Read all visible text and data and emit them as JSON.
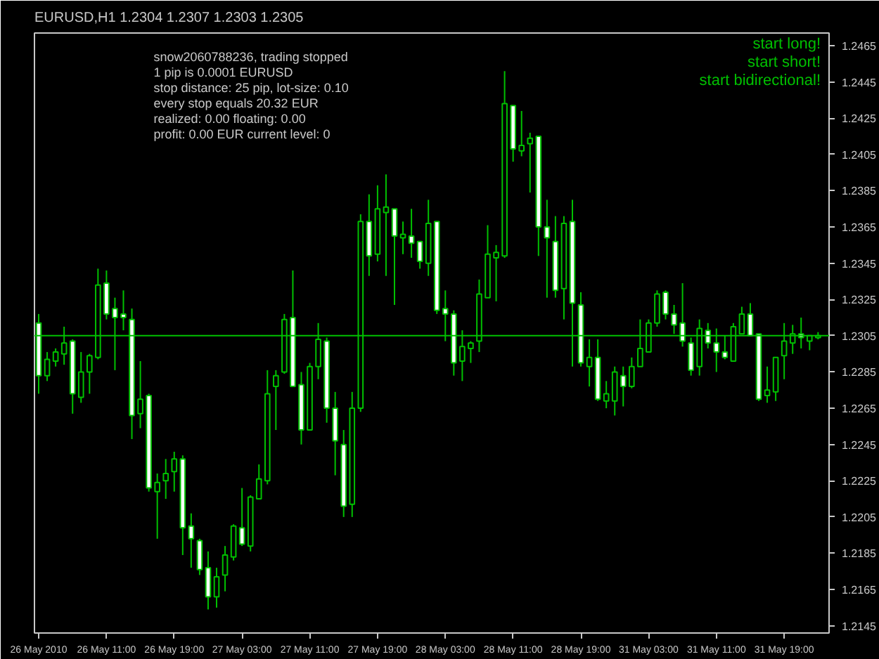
{
  "chart_data": {
    "type": "candlestick",
    "title": "EURUSD,H1  1.2304 1.2307 1.2303 1.2305",
    "categories": [
      "26 May 2010",
      null,
      null,
      null,
      null,
      null,
      null,
      null,
      "26 May 11:00",
      null,
      null,
      null,
      null,
      null,
      null,
      null,
      "26 May 19:00",
      null,
      null,
      null,
      null,
      null,
      null,
      null,
      "27 May 03:00",
      null,
      null,
      null,
      null,
      null,
      null,
      null,
      "27 May 11:00",
      null,
      null,
      null,
      null,
      null,
      null,
      null,
      "27 May 19:00",
      null,
      null,
      null,
      null,
      null,
      null,
      null,
      "28 May 03:00",
      null,
      null,
      null,
      null,
      null,
      null,
      null,
      "28 May 11:00",
      null,
      null,
      null,
      null,
      null,
      null,
      null,
      "28 May 19:00",
      null,
      null,
      null,
      null,
      null,
      null,
      null,
      "31 May 03:00",
      null,
      null,
      null,
      null,
      null,
      null,
      null,
      "31 May 11:00",
      null,
      null,
      null,
      null,
      null,
      null,
      null,
      "31 May 19:00",
      null,
      null,
      null,
      null
    ],
    "series": [
      {
        "color": "#00c000",
        "ohlc": [
          [
            1.2312,
            1.2317,
            1.2273,
            1.2283
          ],
          [
            1.2283,
            1.2296,
            1.228,
            1.2292
          ],
          [
            1.2291,
            1.2298,
            1.2288,
            1.2296
          ],
          [
            1.2295,
            1.231,
            1.2289,
            1.2301
          ],
          [
            1.2302,
            1.2303,
            1.2262,
            1.2273
          ],
          [
            1.2271,
            1.2296,
            1.2268,
            1.2285
          ],
          [
            1.2285,
            1.2295,
            1.2273,
            1.2294
          ],
          [
            1.2293,
            1.2342,
            1.2292,
            1.2333
          ],
          [
            1.2334,
            1.2341,
            1.2314,
            1.2317
          ],
          [
            1.232,
            1.2326,
            1.2286,
            1.2315
          ],
          [
            1.2317,
            1.233,
            1.2308,
            1.2315
          ],
          [
            1.2314,
            1.232,
            1.2248,
            1.2261
          ],
          [
            1.2262,
            1.2291,
            1.2254,
            1.227
          ],
          [
            1.2272,
            1.2273,
            1.2219,
            1.2221
          ],
          [
            1.2219,
            1.2229,
            1.2193,
            1.2224
          ],
          [
            1.2225,
            1.2237,
            1.2215,
            1.2229
          ],
          [
            1.223,
            1.2241,
            1.2219,
            1.2237
          ],
          [
            1.2237,
            1.2239,
            1.2184,
            1.2199
          ],
          [
            1.22,
            1.2207,
            1.2177,
            1.2193
          ],
          [
            1.2192,
            1.2193,
            1.2173,
            1.2176
          ],
          [
            1.2177,
            1.2186,
            1.2154,
            1.2161
          ],
          [
            1.2161,
            1.2177,
            1.2155,
            1.2172
          ],
          [
            1.2173,
            1.2189,
            1.2164,
            1.2184
          ],
          [
            1.2183,
            1.2201,
            1.2181,
            1.22
          ],
          [
            1.2199,
            1.2221,
            1.2189,
            1.219
          ],
          [
            1.2189,
            1.2217,
            1.2186,
            1.2216
          ],
          [
            1.2215,
            1.2234,
            1.2215,
            1.2226
          ],
          [
            1.2225,
            1.2286,
            1.2223,
            1.2273
          ],
          [
            1.2277,
            1.2286,
            1.2253,
            1.2283
          ],
          [
            1.2285,
            1.2317,
            1.2284,
            1.2314
          ],
          [
            1.2315,
            1.2341,
            1.2277,
            1.2277
          ],
          [
            1.2278,
            1.2285,
            1.2245,
            1.2253
          ],
          [
            1.2253,
            1.229,
            1.2253,
            1.2288
          ],
          [
            1.2288,
            1.2312,
            1.2281,
            1.2303
          ],
          [
            1.2302,
            1.2304,
            1.2257,
            1.2265
          ],
          [
            1.2265,
            1.2274,
            1.2228,
            1.2247
          ],
          [
            1.2245,
            1.2253,
            1.2205,
            1.2211
          ],
          [
            1.2212,
            1.2274,
            1.2205,
            1.2265
          ],
          [
            1.2265,
            1.2372,
            1.2263,
            1.2368
          ],
          [
            1.2368,
            1.2383,
            1.2338,
            1.2349
          ],
          [
            1.235,
            1.2388,
            1.2346,
            1.2375
          ],
          [
            1.2373,
            1.2394,
            1.2338,
            1.2376
          ],
          [
            1.2375,
            1.2375,
            1.2322,
            1.236
          ],
          [
            1.2359,
            1.2368,
            1.235,
            1.2361
          ],
          [
            1.236,
            1.2375,
            1.2348,
            1.2356
          ],
          [
            1.2357,
            1.2357,
            1.2342,
            1.2346
          ],
          [
            1.2345,
            1.238,
            1.2338,
            1.2367
          ],
          [
            1.2368,
            1.2368,
            1.2317,
            1.2319
          ],
          [
            1.232,
            1.233,
            1.2302,
            1.2317
          ],
          [
            1.2317,
            1.2319,
            1.2283,
            1.229
          ],
          [
            1.2291,
            1.2308,
            1.228,
            1.2299
          ],
          [
            1.2298,
            1.2302,
            1.229,
            1.2301
          ],
          [
            1.2302,
            1.2336,
            1.2296,
            1.2328
          ],
          [
            1.2326,
            1.2366,
            1.2326,
            1.235
          ],
          [
            1.2348,
            1.2355,
            1.2324,
            1.2351
          ],
          [
            1.2349,
            1.2451,
            1.2348,
            1.2433
          ],
          [
            1.2432,
            1.2432,
            1.2401,
            1.2408
          ],
          [
            1.2407,
            1.2429,
            1.2404,
            1.241
          ],
          [
            1.2411,
            1.2417,
            1.2384,
            1.2414
          ],
          [
            1.2415,
            1.2415,
            1.2349,
            1.2365
          ],
          [
            1.2365,
            1.238,
            1.2326,
            1.2359
          ],
          [
            1.2357,
            1.2371,
            1.2326,
            1.233
          ],
          [
            1.2331,
            1.2371,
            1.2314,
            1.2367
          ],
          [
            1.2368,
            1.238,
            1.2288,
            1.2323
          ],
          [
            1.2322,
            1.2329,
            1.2288,
            1.229
          ],
          [
            1.2288,
            1.2303,
            1.2277,
            1.2293
          ],
          [
            1.2293,
            1.2303,
            1.2269,
            1.227
          ],
          [
            1.2269,
            1.228,
            1.2265,
            1.2273
          ],
          [
            1.2269,
            1.2288,
            1.2261,
            1.2285
          ],
          [
            1.2283,
            1.2288,
            1.2266,
            1.2277
          ],
          [
            1.2277,
            1.2293,
            1.2276,
            1.2288
          ],
          [
            1.2288,
            1.2314,
            1.2288,
            1.2298
          ],
          [
            1.2296,
            1.2314,
            1.2296,
            1.2312
          ],
          [
            1.2312,
            1.233,
            1.231,
            1.2328
          ],
          [
            1.2329,
            1.233,
            1.2314,
            1.2317
          ],
          [
            1.2317,
            1.2322,
            1.2306,
            1.2311
          ],
          [
            1.2312,
            1.2334,
            1.2299,
            1.2302
          ],
          [
            1.2301,
            1.2304,
            1.2283,
            1.2286
          ],
          [
            1.2288,
            1.2314,
            1.2283,
            1.2309
          ],
          [
            1.2308,
            1.2312,
            1.2298,
            1.2301
          ],
          [
            1.2301,
            1.2309,
            1.2285,
            1.2296
          ],
          [
            1.2296,
            1.2305,
            1.2292,
            1.2293
          ],
          [
            1.2291,
            1.2312,
            1.2291,
            1.231
          ],
          [
            1.2306,
            1.2321,
            1.2306,
            1.2317
          ],
          [
            1.2317,
            1.2323,
            1.2305,
            1.2305
          ],
          [
            1.2306,
            1.2306,
            1.2269,
            1.227
          ],
          [
            1.2272,
            1.2288,
            1.2268,
            1.2275
          ],
          [
            1.2274,
            1.2293,
            1.2269,
            1.2293
          ],
          [
            1.2294,
            1.2312,
            1.2281,
            1.2302
          ],
          [
            1.2301,
            1.2311,
            1.2295,
            1.2306
          ],
          [
            1.2306,
            1.2315,
            1.2298,
            1.2304
          ],
          [
            1.2302,
            1.2305,
            1.2297,
            1.2305
          ],
          [
            1.2304,
            1.2307,
            1.2303,
            1.2305
          ]
        ]
      }
    ],
    "ylim": [
      1.2141,
      1.2472
    ],
    "yticks": [
      1.2465,
      1.2445,
      1.2425,
      1.2405,
      1.2385,
      1.2365,
      1.2345,
      1.2325,
      1.2305,
      1.2285,
      1.2265,
      1.2245,
      1.2225,
      1.2205,
      1.2185,
      1.2165,
      1.2145
    ],
    "ref_lines": [
      {
        "axis": "y",
        "value": 1.2305,
        "color": "#00c000",
        "line_style": "solid"
      }
    ],
    "annotations": [
      "snow2060788236, trading stopped",
      "1 pip is 0.0001 EURUSD",
      "stop distance: 25 pip, lot-size: 0.10",
      "every stop equals 20.32 EUR",
      "realized: 0.00  floating: 0.00",
      "profit: 0.00 EUR  current level: 0",
      "start long!",
      "start short!",
      "start bidirectional!"
    ],
    "grid": false
  }
}
